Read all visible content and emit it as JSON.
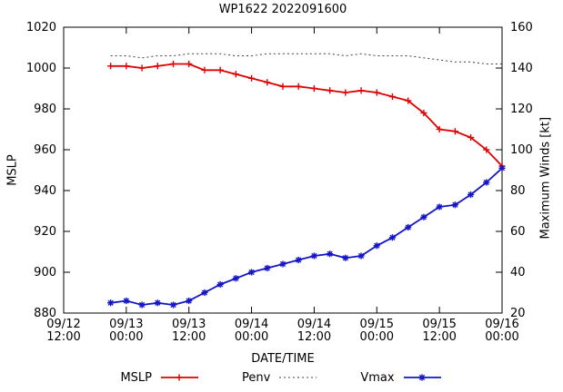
{
  "window": {
    "title": "WP1622 2022091600"
  },
  "axes": {
    "x_label": "DATE/TIME",
    "y_left_label": "MSLP",
    "y_right_label": "Maximum Winds [kt]"
  },
  "legend": {
    "items": [
      {
        "label": "MSLP"
      },
      {
        "label": "Penv"
      },
      {
        "label": "Vmax"
      }
    ]
  },
  "chart_data": {
    "type": "line",
    "title": "WP1622 2022091600",
    "xlabel": "DATE/TIME",
    "ylabel": "MSLP",
    "y2label": "Maximum Winds [kt]",
    "grid": false,
    "legend_position": "bottom-center",
    "xlim": [
      0,
      84
    ],
    "ylim": [
      880,
      1020
    ],
    "y2lim": [
      20,
      160
    ],
    "x_unit": "hours since 09/12 12:00",
    "x_tick_hours": [
      0,
      12,
      24,
      36,
      48,
      60,
      72,
      84
    ],
    "x_tick_labels": [
      [
        "09/12",
        "12:00"
      ],
      [
        "09/13",
        "00:00"
      ],
      [
        "09/13",
        "12:00"
      ],
      [
        "09/14",
        "00:00"
      ],
      [
        "09/14",
        "12:00"
      ],
      [
        "09/15",
        "00:00"
      ],
      [
        "09/15",
        "12:00"
      ],
      [
        "09/16",
        "00:00"
      ]
    ],
    "y_ticks_left": [
      880,
      900,
      920,
      940,
      960,
      980,
      1000,
      1020
    ],
    "y_ticks_right": [
      20,
      40,
      60,
      80,
      100,
      120,
      140,
      160
    ],
    "x": [
      9,
      12,
      15,
      18,
      21,
      24,
      27,
      30,
      33,
      36,
      39,
      42,
      45,
      48,
      51,
      54,
      57,
      60,
      63,
      66,
      69,
      72,
      75,
      78,
      81,
      84
    ],
    "x_datetimes": [
      "09/12 21:00",
      "09/13 00:00",
      "09/13 03:00",
      "09/13 06:00",
      "09/13 09:00",
      "09/13 12:00",
      "09/13 15:00",
      "09/13 18:00",
      "09/13 21:00",
      "09/14 00:00",
      "09/14 03:00",
      "09/14 06:00",
      "09/14 09:00",
      "09/14 12:00",
      "09/14 15:00",
      "09/14 18:00",
      "09/14 21:00",
      "09/15 00:00",
      "09/15 03:00",
      "09/15 06:00",
      "09/15 09:00",
      "09/15 12:00",
      "09/15 15:00",
      "09/15 18:00",
      "09/15 21:00",
      "09/16 00:00"
    ],
    "series": [
      {
        "name": "MSLP",
        "axis": "left",
        "color": "#e00000",
        "style": "solid",
        "marker": "plus",
        "values": [
          1001,
          1001,
          1000,
          1001,
          1002,
          1002,
          999,
          999,
          997,
          995,
          993,
          991,
          991,
          990,
          989,
          988,
          989,
          988,
          986,
          984,
          978,
          970,
          969,
          966,
          960,
          952
        ]
      },
      {
        "name": "Penv",
        "axis": "left",
        "color": "#404040",
        "style": "dotted",
        "marker": "none",
        "values": [
          1006,
          1006,
          1005,
          1006,
          1006,
          1007,
          1007,
          1007,
          1006,
          1006,
          1007,
          1007,
          1007,
          1007,
          1007,
          1006,
          1007,
          1006,
          1006,
          1006,
          1005,
          1004,
          1003,
          1003,
          1002,
          1002
        ]
      },
      {
        "name": "Vmax",
        "axis": "right",
        "color": "#1414c8",
        "style": "solid",
        "marker": "asterisk",
        "values": [
          25,
          26,
          24,
          25,
          24,
          26,
          30,
          34,
          37,
          40,
          42,
          44,
          46,
          48,
          49,
          47,
          48,
          53,
          57,
          62,
          67,
          72,
          73,
          78,
          84,
          91
        ]
      }
    ]
  }
}
